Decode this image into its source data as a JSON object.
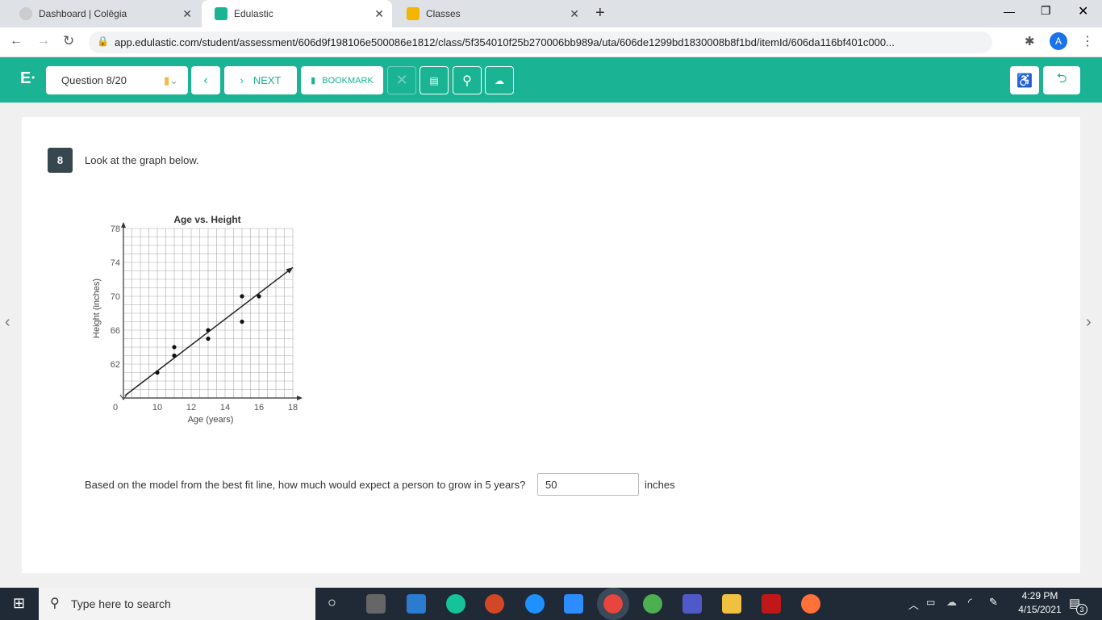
{
  "browser": {
    "tabs": [
      {
        "label": "Dashboard | Colēgia",
        "color": "#bbbbbb"
      },
      {
        "label": "Edulastic",
        "color": "#1ab394"
      },
      {
        "label": "Classes",
        "color": "#f4b400"
      }
    ],
    "url": "app.edulastic.com/student/assessment/606d9f198106e500086e1812/class/5f354010f25b270006bb989a/uta/606de1299bd1830008b8f1bd/itemId/606da116bf401c000...",
    "profile": "A"
  },
  "toolbar": {
    "logo": "E·",
    "question_select": "Question 8/20",
    "next_label": "NEXT",
    "bookmark_label": "BOOKMARK",
    "accent": "#1ab394"
  },
  "question": {
    "number": "8",
    "prompt": "Look at the graph below.",
    "text": "Based on the model from the best fit line, how much would expect a person to grow in 5 years?",
    "answer": "50",
    "unit": "inches"
  },
  "chart_data": {
    "type": "scatter",
    "title": "Age vs. Height",
    "xlabel": "Age (years)",
    "ylabel": "Height (inches)",
    "xlim": [
      8,
      18
    ],
    "ylim": [
      58,
      78
    ],
    "axis_break": true,
    "grid": true,
    "x_ticks": [
      "0",
      "10",
      "12",
      "14",
      "16",
      "18"
    ],
    "y_ticks": [
      "78",
      "74",
      "70",
      "66",
      "62"
    ],
    "points": [
      [
        10,
        61
      ],
      [
        11,
        64
      ],
      [
        11,
        63
      ],
      [
        13,
        66
      ],
      [
        13,
        65
      ],
      [
        15,
        70
      ],
      [
        15,
        67
      ],
      [
        16,
        70
      ]
    ],
    "best_fit_line": [
      [
        8.1,
        58.3
      ],
      [
        18,
        73.4
      ]
    ]
  },
  "taskbar": {
    "search_placeholder": "Type here to search",
    "time": "4:29 PM",
    "date": "4/15/2021",
    "notifications": "3"
  }
}
